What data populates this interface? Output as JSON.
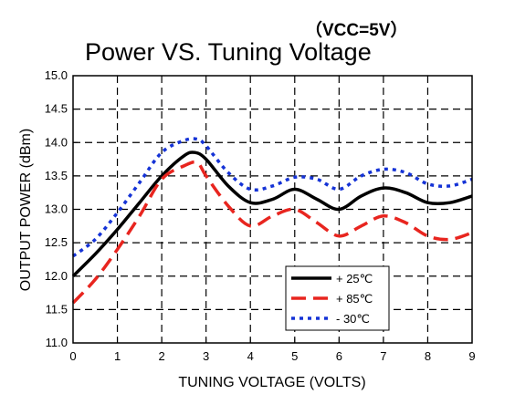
{
  "chart_data": {
    "type": "line",
    "title": "Power VS. Tuning Voltage",
    "subtitle": "（VCC=5V）",
    "xlabel": "TUNING VOLTAGE (VOLTS)",
    "ylabel": "OUTPUT POWER (dBm)",
    "xlim": [
      0,
      9
    ],
    "ylim": [
      11.0,
      15.0
    ],
    "x_ticks": [
      "0",
      "1",
      "2",
      "3",
      "4",
      "5",
      "6",
      "7",
      "8",
      "9"
    ],
    "y_ticks": [
      "11.0",
      "11.5",
      "12.0",
      "12.5",
      "13.0",
      "13.5",
      "14.0",
      "14.5",
      "15.0"
    ],
    "grid": true,
    "legend_position": "bottom-right-inside",
    "series": [
      {
        "name": "+ 25℃",
        "color": "#000000",
        "style": "solid",
        "x": [
          0,
          0.5,
          1,
          1.5,
          2,
          2.5,
          2.75,
          3,
          3.5,
          4,
          4.5,
          5,
          5.5,
          6,
          6.5,
          7,
          7.5,
          8,
          8.5,
          9
        ],
        "y": [
          12.0,
          12.33,
          12.7,
          13.1,
          13.5,
          13.8,
          13.85,
          13.75,
          13.35,
          13.1,
          13.15,
          13.3,
          13.15,
          13.0,
          13.2,
          13.32,
          13.25,
          13.1,
          13.1,
          13.2
        ]
      },
      {
        "name": "+ 85℃",
        "color": "#e8251f",
        "style": "dashed",
        "x": [
          0,
          0.5,
          1,
          1.5,
          2,
          2.5,
          2.8,
          3,
          3.5,
          4,
          4.5,
          5,
          5.5,
          6,
          6.5,
          7,
          7.5,
          8,
          8.5,
          9
        ],
        "y": [
          11.6,
          11.95,
          12.4,
          12.9,
          13.45,
          13.65,
          13.7,
          13.5,
          13.05,
          12.75,
          12.9,
          13.0,
          12.8,
          12.6,
          12.75,
          12.9,
          12.8,
          12.6,
          12.55,
          12.65
        ]
      },
      {
        "name": "- 30℃",
        "color": "#1533d6",
        "style": "dotted",
        "x": [
          0,
          0.5,
          1,
          1.5,
          2,
          2.5,
          2.8,
          3,
          3.5,
          4,
          4.5,
          5,
          5.5,
          6,
          6.5,
          7,
          7.5,
          8,
          8.5,
          9
        ],
        "y": [
          12.3,
          12.55,
          12.95,
          13.4,
          13.85,
          14.03,
          14.05,
          13.95,
          13.55,
          13.3,
          13.35,
          13.48,
          13.45,
          13.3,
          13.5,
          13.6,
          13.55,
          13.38,
          13.35,
          13.45
        ]
      }
    ]
  }
}
